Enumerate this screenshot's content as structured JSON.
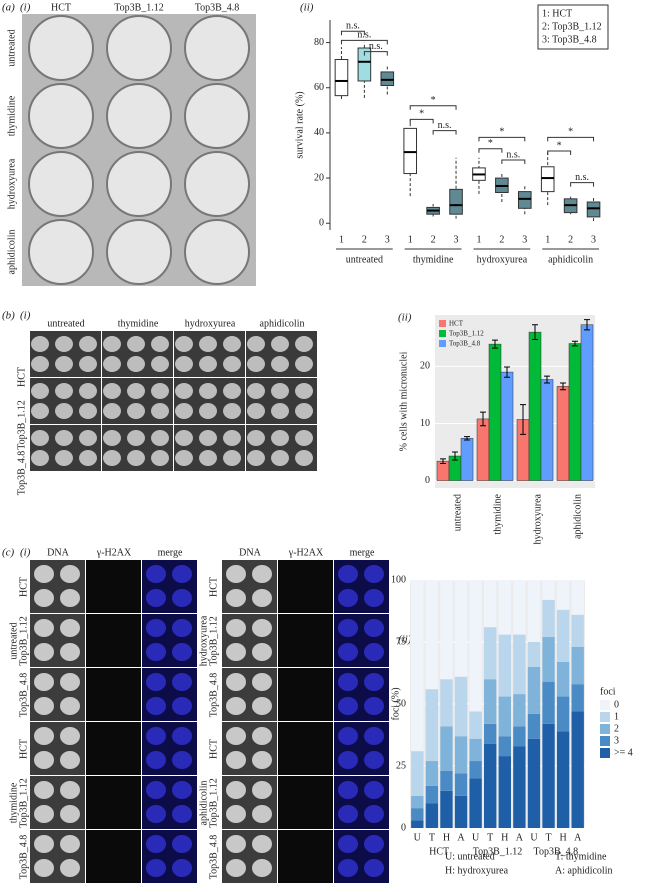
{
  "panels": {
    "a": {
      "label": "(a)",
      "sub": "(i)",
      "columns": [
        "HCT",
        "Top3B_1.12",
        "Top3B_4.8"
      ],
      "rows": [
        "untreated",
        "thymidine",
        "hydroxyurea",
        "aphidicolin"
      ]
    },
    "b": {
      "label": "(b)",
      "sub": "(i)",
      "columns": [
        "untreated",
        "thymidine",
        "hydroxyurea",
        "aphidicolin"
      ],
      "rows": [
        "HCT",
        "Top3B_1.12",
        "Top3B_4.8"
      ]
    },
    "c": {
      "label": "(c)",
      "sub": "(i)",
      "channels": [
        "DNA",
        "γ-H2AX",
        "merge"
      ],
      "channel_colors": [
        "#3a4fd0",
        "#d03030",
        "#000000"
      ],
      "blocks": [
        [
          {
            "treatment": "untreated",
            "lines": [
              "HCT",
              "Top3B_1.12",
              "Top3B_4.8"
            ]
          },
          {
            "treatment": "thymidine",
            "lines": [
              "HCT",
              "Top3B_1.12",
              "Top3B_4.8"
            ]
          }
        ],
        [
          {
            "treatment": "hydroxyurea",
            "lines": [
              "HCT",
              "Top3B_1.12",
              "Top3B_4.8"
            ]
          },
          {
            "treatment": "aphidicolin",
            "lines": [
              "HCT",
              "Top3B_1.12",
              "Top3B_4.8"
            ]
          }
        ]
      ]
    }
  },
  "chart_data": [
    {
      "type": "box",
      "title": "(ii)",
      "y_label": "survival rate (%)",
      "categories": [
        "1",
        "2",
        "3",
        "1",
        "2",
        "3",
        "1",
        "2",
        "3",
        "1",
        "2",
        "3"
      ],
      "groups": [
        "untreated",
        "thymidine",
        "hydroxyurea",
        "aphidicolin"
      ],
      "boxes": [
        {
          "min": 55,
          "q1": 56.5,
          "median": 63,
          "q3": 72.5,
          "max": 78,
          "color": "#ffffff"
        },
        {
          "min": 55.5,
          "q1": 63,
          "median": 71.5,
          "q3": 77.6,
          "max": 80,
          "color": "#9fdde3"
        },
        {
          "min": 57,
          "q1": 61,
          "median": 63.5,
          "q3": 67,
          "max": 70,
          "color": "#5f8a93"
        },
        {
          "min": 12,
          "q1": 22,
          "median": 31.5,
          "q3": 42,
          "max": 45.6,
          "color": "#ffffff"
        },
        {
          "min": 3,
          "q1": 4,
          "median": 5.6,
          "q3": 7,
          "max": 8.5,
          "color": "#5f8a93"
        },
        {
          "min": 2,
          "q1": 4,
          "median": 8,
          "q3": 15,
          "max": 29,
          "color": "#5f8a93"
        },
        {
          "min": 13,
          "q1": 19,
          "median": 21.6,
          "q3": 24.5,
          "max": 29,
          "color": "#ffffff"
        },
        {
          "min": 9.4,
          "q1": 13.6,
          "median": 16.5,
          "q3": 20,
          "max": 22,
          "color": "#5f8a93"
        },
        {
          "min": 4,
          "q1": 6.6,
          "median": 10.8,
          "q3": 14,
          "max": 16.5,
          "color": "#5f8a93"
        },
        {
          "min": 8,
          "q1": 14,
          "median": 20,
          "q3": 25,
          "max": 31.5,
          "color": "#ffffff"
        },
        {
          "min": 4,
          "q1": 4.7,
          "median": 8,
          "q3": 10.8,
          "max": 11.8,
          "color": "#5f8a93"
        },
        {
          "min": 1,
          "q1": 2.8,
          "median": 6.6,
          "q3": 9.4,
          "max": 12,
          "color": "#5f8a93"
        }
      ],
      "ylim": [
        -3,
        90
      ],
      "yticks": [
        0,
        20,
        40,
        60,
        80
      ],
      "legend": [
        "1: HCT",
        "2: Top3B_1.12",
        "3: Top3B_4.8"
      ],
      "annotations": [
        {
          "text": "n.s.",
          "from": 0,
          "to": 1,
          "y": 85
        },
        {
          "text": "n.s.",
          "from": 0,
          "to": 2,
          "y": 81
        },
        {
          "text": "n.s.",
          "from": 1,
          "to": 2,
          "y": 76
        },
        {
          "text": "*",
          "from": 3,
          "to": 5,
          "y": 52
        },
        {
          "text": "*",
          "from": 3,
          "to": 4,
          "y": 46
        },
        {
          "text": "n.s.",
          "from": 4,
          "to": 5,
          "y": 41
        },
        {
          "text": "*",
          "from": 6,
          "to": 8,
          "y": 38
        },
        {
          "text": "*",
          "from": 6,
          "to": 7,
          "y": 33
        },
        {
          "text": "n.s.",
          "from": 7,
          "to": 8,
          "y": 28
        },
        {
          "text": "*",
          "from": 9,
          "to": 11,
          "y": 38
        },
        {
          "text": "*",
          "from": 9,
          "to": 10,
          "y": 32
        },
        {
          "text": "n.s.",
          "from": 10,
          "to": 11,
          "y": 18
        }
      ]
    },
    {
      "type": "bar",
      "title": "(ii)",
      "y_label": "% cells with micronuclei",
      "categories": [
        "untreated",
        "thymidine",
        "hydroxyurea",
        "aphidicolin"
      ],
      "series": [
        {
          "name": "HCT",
          "color": "#f8766d",
          "values": [
            3.4,
            10.8,
            10.7,
            16.5
          ],
          "errors": [
            0.4,
            1.2,
            2.6,
            0.6
          ]
        },
        {
          "name": "Top3B_1.12",
          "color": "#00ba38",
          "values": [
            4.3,
            23.9,
            26,
            24
          ],
          "errors": [
            0.7,
            0.7,
            1.3,
            0.4
          ]
        },
        {
          "name": "Top3B_4.8",
          "color": "#619cff",
          "values": [
            7.4,
            19,
            17.7,
            27.3
          ],
          "errors": [
            0.3,
            0.9,
            0.6,
            0.9
          ]
        }
      ],
      "ylim": [
        -1.3,
        29
      ],
      "yticks": [
        0,
        10,
        20
      ],
      "grid": true
    },
    {
      "type": "stacked_bar",
      "title": "(ii)",
      "y_label": "foci (%)",
      "legend_title": "foci",
      "categories": [
        "U",
        "T",
        "H",
        "A",
        "U",
        "T",
        "H",
        "A",
        "U",
        "T",
        "H",
        "A"
      ],
      "groups": [
        "HCT",
        "Top3B_1.12",
        "Top3B_4.8"
      ],
      "series": [
        {
          "name": "0",
          "color": "#eef4fa",
          "values": [
            69,
            44,
            40,
            39,
            53,
            19,
            22,
            22,
            25,
            8,
            12,
            14
          ]
        },
        {
          "name": "1",
          "color": "#b9d6ec",
          "values": [
            18,
            29,
            19,
            24,
            11,
            21,
            25,
            24,
            10,
            15,
            21,
            13
          ]
        },
        {
          "name": "2",
          "color": "#7fb3da",
          "values": [
            5,
            10,
            18,
            15,
            9,
            18,
            16,
            13,
            19,
            18,
            14,
            15
          ]
        },
        {
          "name": "3",
          "color": "#4a8bc6",
          "values": [
            5,
            7,
            8,
            9,
            7,
            8,
            8,
            8,
            10,
            17,
            14,
            11
          ]
        },
        {
          "name": ">= 4",
          "color": "#1f5fa8",
          "values": [
            3,
            10,
            15,
            13,
            20,
            34,
            29,
            33,
            36,
            42,
            39,
            47
          ]
        }
      ],
      "ylim": [
        0,
        100
      ],
      "yticks": [
        0,
        25,
        50,
        75,
        100
      ],
      "grid": true,
      "notes": [
        "U: untreated",
        "T: thymidine",
        "H: hydroxyurea",
        "A: aphidicolin"
      ]
    }
  ]
}
